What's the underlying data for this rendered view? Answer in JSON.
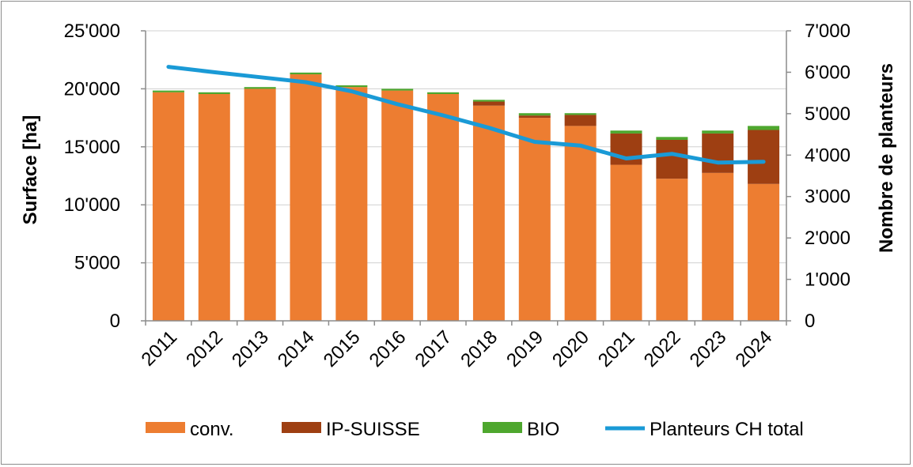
{
  "chart_data": {
    "type": "bar",
    "stacked": true,
    "categories": [
      "2011",
      "2012",
      "2013",
      "2014",
      "2015",
      "2016",
      "2017",
      "2018",
      "2019",
      "2020",
      "2021",
      "2022",
      "2023",
      "2024"
    ],
    "series": [
      {
        "name": "conv.",
        "axis": "left",
        "color": "#ED7D31",
        "values": [
          19700,
          19550,
          20000,
          21250,
          20150,
          19850,
          19550,
          18550,
          17500,
          16800,
          13450,
          12250,
          12750,
          11800
        ]
      },
      {
        "name": "IP-SUISSE",
        "axis": "left",
        "color": "#9E3F12",
        "values": [
          0,
          0,
          0,
          0,
          0,
          0,
          0,
          350,
          200,
          950,
          2700,
          3350,
          3400,
          4650
        ]
      },
      {
        "name": "BIO",
        "axis": "left",
        "color": "#4EA72E",
        "values": [
          150,
          150,
          150,
          150,
          150,
          150,
          150,
          150,
          200,
          150,
          250,
          250,
          250,
          350
        ]
      },
      {
        "name": "Planteurs CH total",
        "axis": "right",
        "type": "line",
        "color": "#1A9AD6",
        "values": [
          6130,
          6000,
          5880,
          5760,
          5540,
          5230,
          4960,
          4660,
          4320,
          4230,
          3920,
          4030,
          3820,
          3840
        ]
      }
    ],
    "ylabel": "Surface [ha]",
    "y2label": "Nombre de planteurs",
    "ylim": [
      0,
      25000
    ],
    "y2lim": [
      0,
      7000
    ],
    "yticks": [
      "0",
      "5'000",
      "10'000",
      "15'000",
      "20'000",
      "25'000"
    ],
    "y2ticks": [
      "0",
      "1'000",
      "2'000",
      "3'000",
      "4'000",
      "5'000",
      "6'000",
      "7'000"
    ],
    "grid": true,
    "legend_position": "bottom"
  }
}
